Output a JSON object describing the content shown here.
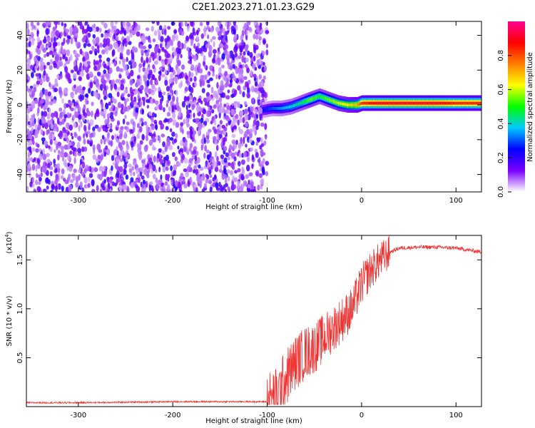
{
  "title": "C2E1.2023.271.01.23.G29",
  "chart_data": [
    {
      "type": "heatmap",
      "xlabel": "Height of straight line (km)",
      "ylabel": "Frequency (Hz)",
      "xlim": [
        -355,
        127
      ],
      "ylim": [
        -50,
        48
      ],
      "xticks": [
        -300,
        -200,
        -100,
        0,
        100
      ],
      "yticks": [
        -40,
        -20,
        0,
        20,
        40
      ],
      "colorbar": {
        "label": "Normalized spectral amplitude",
        "range": [
          0,
          1
        ],
        "ticks": [
          0.0,
          0.2,
          0.4,
          0.6,
          0.8
        ],
        "tick_labels": [
          "0.0",
          "0.2",
          "0.4",
          "0.6",
          "0.8"
        ],
        "colors": [
          "#ffffff",
          "#7a00ff",
          "#0000ff",
          "#00c8ff",
          "#00ff00",
          "#ffff00",
          "#ff8000",
          "#ff0000",
          "#ff0090"
        ]
      },
      "noise_region_x": [
        -355,
        -100
      ],
      "signal_track": {
        "x": [
          -105,
          -95,
          -85,
          -75,
          -65,
          -55,
          -45,
          -35,
          -25,
          -15,
          -5,
          0,
          20,
          40,
          60,
          80,
          100,
          127
        ],
        "frequency": [
          -3,
          -2,
          -2,
          -1,
          1,
          3,
          5,
          3,
          1,
          0,
          0,
          1,
          1,
          1,
          1,
          1,
          1,
          1
        ],
        "amplitude": [
          0.25,
          0.3,
          0.35,
          0.4,
          0.45,
          0.55,
          0.5,
          0.55,
          0.6,
          0.65,
          0.7,
          0.85,
          0.9,
          0.9,
          0.9,
          0.9,
          0.85,
          0.85
        ]
      }
    },
    {
      "type": "line",
      "xlabel": "Height of straight line (km)",
      "ylabel": "SNR (10 * v/v)",
      "scale_label": "(x10",
      "scale_exp": "4",
      "scale_close": ")",
      "xlim": [
        -355,
        127
      ],
      "ylim": [
        0,
        1.75
      ],
      "xticks": [
        -300,
        -200,
        -100,
        0,
        100
      ],
      "yticks": [
        0.5,
        1.0,
        1.5
      ],
      "ytick_labels": [
        "0.5",
        "1.0",
        "1.5"
      ],
      "series": [
        {
          "color": "#ee3333",
          "x": [
            -355,
            -300,
            -200,
            -100,
            -90,
            -80,
            -70,
            -60,
            -50,
            -40,
            -30,
            -20,
            -10,
            0,
            10,
            20,
            30,
            40,
            60,
            80,
            100,
            127
          ],
          "y": [
            0.04,
            0.04,
            0.05,
            0.05,
            0.1,
            0.3,
            0.45,
            0.55,
            0.6,
            0.7,
            0.8,
            0.9,
            1.0,
            1.25,
            1.4,
            1.5,
            1.58,
            1.62,
            1.63,
            1.63,
            1.62,
            1.58
          ]
        }
      ]
    }
  ]
}
